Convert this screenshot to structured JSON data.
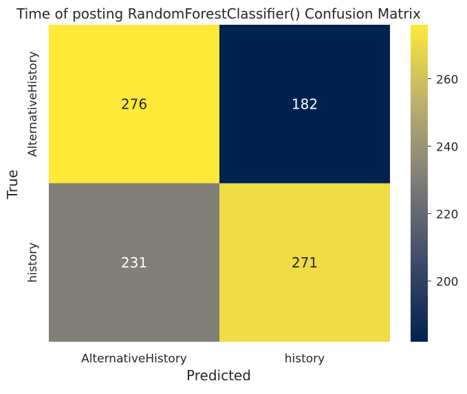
{
  "chart_data": {
    "type": "heatmap",
    "title": "Time of posting RandomForestClassifier() Confusion Matrix",
    "xlabel": "Predicted",
    "ylabel": "True",
    "x_categories": [
      "AlternativeHistory",
      "history"
    ],
    "y_categories": [
      "AlternativeHistory",
      "history"
    ],
    "values": [
      [
        276,
        182
      ],
      [
        231,
        271
      ]
    ],
    "colormap": "cividis",
    "colorbar": {
      "range": [
        182,
        276
      ],
      "ticks": [
        200,
        220,
        240,
        260
      ],
      "tick_labels": [
        "200",
        "220",
        "240",
        "260"
      ]
    },
    "grid": false
  }
}
